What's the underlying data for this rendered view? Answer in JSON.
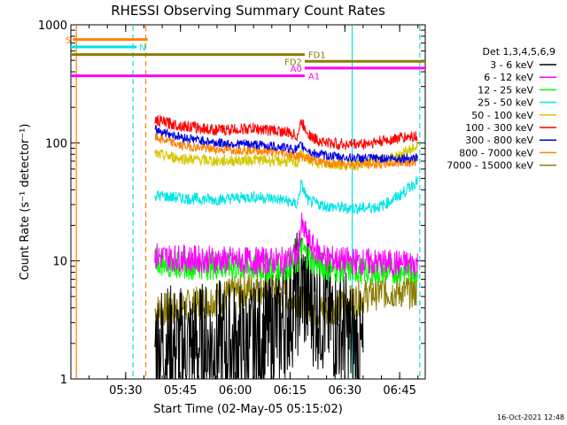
{
  "chart_data": {
    "type": "line",
    "title": "RHESSI Observing Summary Count Rates",
    "xlabel": "Start Time (02-May-05 05:15:02)",
    "ylabel": "Count Rate (s⁻¹ detector⁻¹)",
    "yscale": "log",
    "ylim": [
      1,
      1000
    ],
    "xlim_minutes": [
      0,
      97
    ],
    "x_ticks": [
      {
        "minute": 15,
        "label": "05:30"
      },
      {
        "minute": 30,
        "label": "05:45"
      },
      {
        "minute": 45,
        "label": "06:00"
      },
      {
        "minute": 60,
        "label": "06:15"
      },
      {
        "minute": 75,
        "label": "06:30"
      },
      {
        "minute": 90,
        "label": "06:45"
      }
    ],
    "y_ticks": [
      {
        "value": 1,
        "label": "1"
      },
      {
        "value": 10,
        "label": "10"
      },
      {
        "value": 100,
        "label": "100"
      },
      {
        "value": 1000,
        "label": "1000"
      }
    ],
    "legend_title": "Det 1,3,4,5,6,9",
    "legend_position": "right",
    "series": [
      {
        "name": "3 - 6 keV",
        "color": "#000000",
        "x": [
          23,
          30,
          40,
          50,
          58,
          63,
          66,
          70,
          75,
          80
        ],
        "values": [
          2.0,
          1.8,
          2.0,
          1.9,
          3.0,
          6.0,
          4.5,
          3.5,
          2.5,
          1.5
        ]
      },
      {
        "name": "6 - 12 keV",
        "color": "#ff00ff",
        "x": [
          23,
          30,
          40,
          50,
          58,
          62,
          63,
          66,
          70,
          75,
          80,
          85,
          90,
          95
        ],
        "values": [
          11,
          10.5,
          10.2,
          10.0,
          10.0,
          11,
          20,
          13,
          10.5,
          10,
          9.8,
          9.6,
          9.5,
          9.5
        ]
      },
      {
        "name": "12 - 25 keV",
        "color": "#00ff00",
        "x": [
          23,
          30,
          40,
          50,
          58,
          62,
          63,
          66,
          70,
          75,
          80,
          85,
          90,
          95
        ],
        "values": [
          10,
          9.2,
          9.0,
          8.8,
          8.8,
          9.5,
          13,
          10,
          8.7,
          8.5,
          8.3,
          8.2,
          8.3,
          8.4
        ]
      },
      {
        "name": "25 - 50 keV",
        "color": "#00e5e5",
        "x": [
          23,
          30,
          40,
          50,
          58,
          62,
          63,
          65,
          70,
          75,
          80,
          85,
          90,
          95
        ],
        "values": [
          36,
          34,
          33,
          35,
          33,
          30,
          45,
          32,
          29,
          28,
          28,
          29,
          36,
          48
        ]
      },
      {
        "name": "50 - 100 keV",
        "color": "#d4c800",
        "x": [
          23,
          30,
          40,
          50,
          58,
          62,
          63,
          66,
          70,
          75,
          80,
          85,
          90,
          95
        ],
        "values": [
          80,
          74,
          70,
          72,
          70,
          68,
          80,
          70,
          66,
          65,
          66,
          70,
          78,
          95
        ]
      },
      {
        "name": "100 - 300 keV",
        "color": "#ff0000",
        "x": [
          23,
          30,
          40,
          50,
          58,
          62,
          63,
          66,
          70,
          75,
          80,
          85,
          90,
          95
        ],
        "values": [
          155,
          140,
          128,
          132,
          125,
          115,
          150,
          110,
          100,
          97,
          98,
          103,
          110,
          115
        ]
      },
      {
        "name": "300 - 800 keV",
        "color": "#0000e0",
        "x": [
          23,
          30,
          40,
          50,
          58,
          62,
          63,
          66,
          70,
          75,
          80,
          85,
          90,
          95
        ],
        "values": [
          130,
          112,
          100,
          97,
          92,
          88,
          95,
          82,
          78,
          75,
          74,
          74,
          74,
          75
        ]
      },
      {
        "name": "800 - 7000 keV",
        "color": "#ff8000",
        "x": [
          23,
          30,
          40,
          50,
          58,
          62,
          66,
          70,
          75,
          80,
          85,
          90,
          95
        ],
        "values": [
          112,
          95,
          88,
          87,
          82,
          78,
          72,
          67,
          66,
          66,
          66,
          68,
          70
        ]
      },
      {
        "name": "7000 - 15000 keV",
        "color": "#8b7d00",
        "x": [
          23,
          30,
          40,
          50,
          58,
          63,
          66,
          70,
          75,
          80,
          85,
          90,
          95
        ],
        "values": [
          3.8,
          4.0,
          4.8,
          6.0,
          5.5,
          4.5,
          3.8,
          3.8,
          4.3,
          5.0,
          5.5,
          5.5,
          5.5
        ]
      }
    ],
    "flag_labels": [
      {
        "label": "S",
        "color": "#ff8000",
        "x_start": 0.5,
        "x_end": 21,
        "value": 750
      },
      {
        "label": "N",
        "color": "#00e5e5",
        "x_start": 0,
        "x_end": 18,
        "value": 650
      },
      {
        "label": "FD1",
        "color": "#8b7d00",
        "x_start": 0,
        "x_end": 64,
        "value": 560
      },
      {
        "label": "FD2",
        "color": "#8b7d00",
        "x_start": 64,
        "x_end": 97,
        "value": 490
      },
      {
        "label": "A0",
        "color": "#ff00ff",
        "x_start": 64,
        "x_end": 97,
        "value": 430
      },
      {
        "label": "A1",
        "color": "#ff00ff",
        "x_start": 0,
        "x_end": 64,
        "value": 370
      }
    ],
    "vertical_markers": [
      {
        "color": "#ff8000",
        "minute": 1.5,
        "style": "solid"
      },
      {
        "color": "#00e5e5",
        "minute": 17,
        "style": "dashed"
      },
      {
        "color": "#ff8000",
        "minute": 20.5,
        "style": "dashed"
      },
      {
        "color": "#00e5e5",
        "minute": 77,
        "style": "solid"
      },
      {
        "color": "#00e5e5",
        "minute": 95.5,
        "style": "dashed"
      }
    ],
    "timestamp": "16-Oct-2021 12:48"
  }
}
